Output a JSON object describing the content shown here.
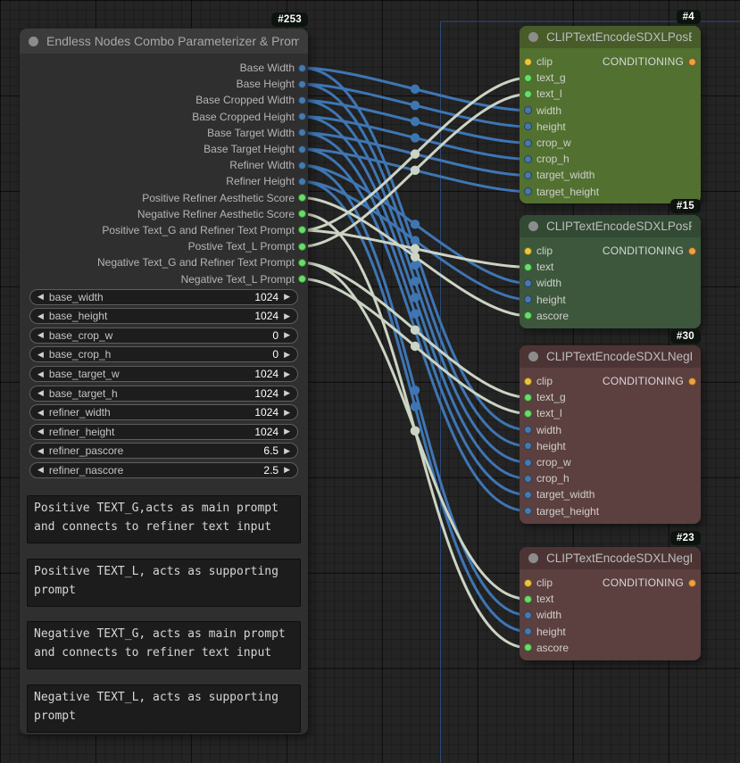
{
  "main_node": {
    "id": "#253",
    "title": "Endless Nodes Combo Parameterizer & Prompts",
    "outputs": [
      {
        "label": "Base Width",
        "type": "number"
      },
      {
        "label": "Base Height",
        "type": "number"
      },
      {
        "label": "Base Cropped Width",
        "type": "number"
      },
      {
        "label": "Base Cropped Height",
        "type": "number"
      },
      {
        "label": "Base Target Width",
        "type": "number"
      },
      {
        "label": "Base Target Height",
        "type": "number"
      },
      {
        "label": "Refiner Width",
        "type": "number"
      },
      {
        "label": "Refiner Height",
        "type": "number"
      },
      {
        "label": "Positive Refiner Aesthetic Score",
        "type": "text"
      },
      {
        "label": "Negative Refiner Aesthetic Score",
        "type": "text"
      },
      {
        "label": "Positive Text_G and Refiner Text Prompt",
        "type": "text"
      },
      {
        "label": "Postive Text_L Prompt",
        "type": "text"
      },
      {
        "label": "Negative Text_G and Refiner Text Prompt",
        "type": "text"
      },
      {
        "label": "Negative Text_L Prompt",
        "type": "text"
      }
    ],
    "widgets": [
      {
        "name": "base_width",
        "value": "1024"
      },
      {
        "name": "base_height",
        "value": "1024"
      },
      {
        "name": "base_crop_w",
        "value": "0"
      },
      {
        "name": "base_crop_h",
        "value": "0"
      },
      {
        "name": "base_target_w",
        "value": "1024"
      },
      {
        "name": "base_target_h",
        "value": "1024"
      },
      {
        "name": "refiner_width",
        "value": "1024"
      },
      {
        "name": "refiner_height",
        "value": "1024"
      },
      {
        "name": "refiner_pascore",
        "value": "6.5"
      },
      {
        "name": "refiner_nascore",
        "value": "2.5"
      }
    ],
    "textboxes": [
      {
        "text": "Positive TEXT_G,acts as main prompt\nand connects to refiner text input"
      },
      {
        "text": "Positive TEXT_L, acts as supporting\nprompt"
      },
      {
        "text": "Negative TEXT_G, acts as main prompt\nand connects to refiner text input"
      },
      {
        "text": "Negative TEXT_L, acts as supporting\nprompt"
      }
    ]
  },
  "encoder_nodes": [
    {
      "key": "n4",
      "id": "#4",
      "title": "CLIPTextEncodeSDXLPosBase",
      "theme": "olive",
      "inputs": [
        {
          "name": "clip",
          "type": "clip"
        },
        {
          "name": "text_g",
          "type": "text"
        },
        {
          "name": "text_l",
          "type": "text"
        },
        {
          "name": "width",
          "type": "number"
        },
        {
          "name": "height",
          "type": "number"
        },
        {
          "name": "crop_w",
          "type": "number"
        },
        {
          "name": "crop_h",
          "type": "number"
        },
        {
          "name": "target_width",
          "type": "number"
        },
        {
          "name": "target_height",
          "type": "number"
        }
      ],
      "outputs": [
        {
          "name": "CONDITIONING",
          "type": "conditioning"
        }
      ]
    },
    {
      "key": "n15",
      "id": "#15",
      "title": "CLIPTextEncodeSDXLPosRefiner",
      "theme": "green",
      "inputs": [
        {
          "name": "clip",
          "type": "clip"
        },
        {
          "name": "text",
          "type": "text"
        },
        {
          "name": "width",
          "type": "number"
        },
        {
          "name": "height",
          "type": "number"
        },
        {
          "name": "ascore",
          "type": "text"
        }
      ],
      "outputs": [
        {
          "name": "CONDITIONING",
          "type": "conditioning"
        }
      ]
    },
    {
      "key": "n30",
      "id": "#30",
      "title": "CLIPTextEncodeSDXLNegBase",
      "theme": "red",
      "inputs": [
        {
          "name": "clip",
          "type": "clip"
        },
        {
          "name": "text_g",
          "type": "text"
        },
        {
          "name": "text_l",
          "type": "text"
        },
        {
          "name": "width",
          "type": "number"
        },
        {
          "name": "height",
          "type": "number"
        },
        {
          "name": "crop_w",
          "type": "number"
        },
        {
          "name": "crop_h",
          "type": "number"
        },
        {
          "name": "target_width",
          "type": "number"
        },
        {
          "name": "target_height",
          "type": "number"
        }
      ],
      "outputs": [
        {
          "name": "CONDITIONING",
          "type": "conditioning"
        }
      ]
    },
    {
      "key": "n23",
      "id": "#23",
      "title": "CLIPTextEncodeSDXLNegRefiner",
      "theme": "red",
      "inputs": [
        {
          "name": "clip",
          "type": "clip"
        },
        {
          "name": "text",
          "type": "text"
        },
        {
          "name": "width",
          "type": "number"
        },
        {
          "name": "height",
          "type": "number"
        },
        {
          "name": "ascore",
          "type": "text"
        }
      ],
      "outputs": [
        {
          "name": "CONDITIONING",
          "type": "conditioning"
        }
      ]
    }
  ],
  "links": [
    {
      "from": "Base Width",
      "to_node": "#4",
      "to_input": "width",
      "type": "number"
    },
    {
      "from": "Base Height",
      "to_node": "#4",
      "to_input": "height",
      "type": "number"
    },
    {
      "from": "Base Cropped Width",
      "to_node": "#4",
      "to_input": "crop_w",
      "type": "number"
    },
    {
      "from": "Base Cropped Height",
      "to_node": "#4",
      "to_input": "crop_h",
      "type": "number"
    },
    {
      "from": "Base Target Width",
      "to_node": "#4",
      "to_input": "target_width",
      "type": "number"
    },
    {
      "from": "Base Target Height",
      "to_node": "#4",
      "to_input": "target_height",
      "type": "number"
    },
    {
      "from": "Base Width",
      "to_node": "#30",
      "to_input": "width",
      "type": "number"
    },
    {
      "from": "Base Height",
      "to_node": "#30",
      "to_input": "height",
      "type": "number"
    },
    {
      "from": "Base Cropped Width",
      "to_node": "#30",
      "to_input": "crop_w",
      "type": "number"
    },
    {
      "from": "Base Cropped Height",
      "to_node": "#30",
      "to_input": "crop_h",
      "type": "number"
    },
    {
      "from": "Base Target Width",
      "to_node": "#30",
      "to_input": "target_width",
      "type": "number"
    },
    {
      "from": "Base Target Height",
      "to_node": "#30",
      "to_input": "target_height",
      "type": "number"
    },
    {
      "from": "Refiner Width",
      "to_node": "#15",
      "to_input": "width",
      "type": "number"
    },
    {
      "from": "Refiner Height",
      "to_node": "#15",
      "to_input": "height",
      "type": "number"
    },
    {
      "from": "Refiner Width",
      "to_node": "#23",
      "to_input": "width",
      "type": "number"
    },
    {
      "from": "Refiner Height",
      "to_node": "#23",
      "to_input": "height",
      "type": "number"
    },
    {
      "from": "Positive Refiner Aesthetic Score",
      "to_node": "#15",
      "to_input": "ascore",
      "type": "text"
    },
    {
      "from": "Negative Refiner Aesthetic Score",
      "to_node": "#23",
      "to_input": "ascore",
      "type": "text"
    },
    {
      "from": "Positive Text_G and Refiner Text Prompt",
      "to_node": "#4",
      "to_input": "text_g",
      "type": "text"
    },
    {
      "from": "Positive Text_G and Refiner Text Prompt",
      "to_node": "#15",
      "to_input": "text",
      "type": "text"
    },
    {
      "from": "Postive Text_L Prompt",
      "to_node": "#4",
      "to_input": "text_l",
      "type": "text"
    },
    {
      "from": "Negative Text_G and Refiner Text Prompt",
      "to_node": "#30",
      "to_input": "text_g",
      "type": "text"
    },
    {
      "from": "Negative Text_G and Refiner Text Prompt",
      "to_node": "#23",
      "to_input": "text",
      "type": "text"
    },
    {
      "from": "Negative Text_L Prompt",
      "to_node": "#30",
      "to_input": "text_l",
      "type": "text"
    }
  ],
  "widget_controls": {
    "decrement": "◀",
    "increment": "▶"
  },
  "colors": {
    "themes": {
      "olive": {
        "header": "#475c29",
        "body": "#527030"
      },
      "green": {
        "header": "#324a33",
        "body": "#3c573c"
      },
      "red": {
        "header": "#4d3434",
        "body": "#5c3f3f"
      }
    },
    "ports": {
      "number": "#4779ad",
      "text": "#68dd68",
      "clip": "#e9c63b",
      "conditioning": "#efa13d"
    },
    "links": {
      "number": "#3e76b4",
      "text": "#ccd4c4"
    },
    "selection_line": "#2b4a73"
  }
}
